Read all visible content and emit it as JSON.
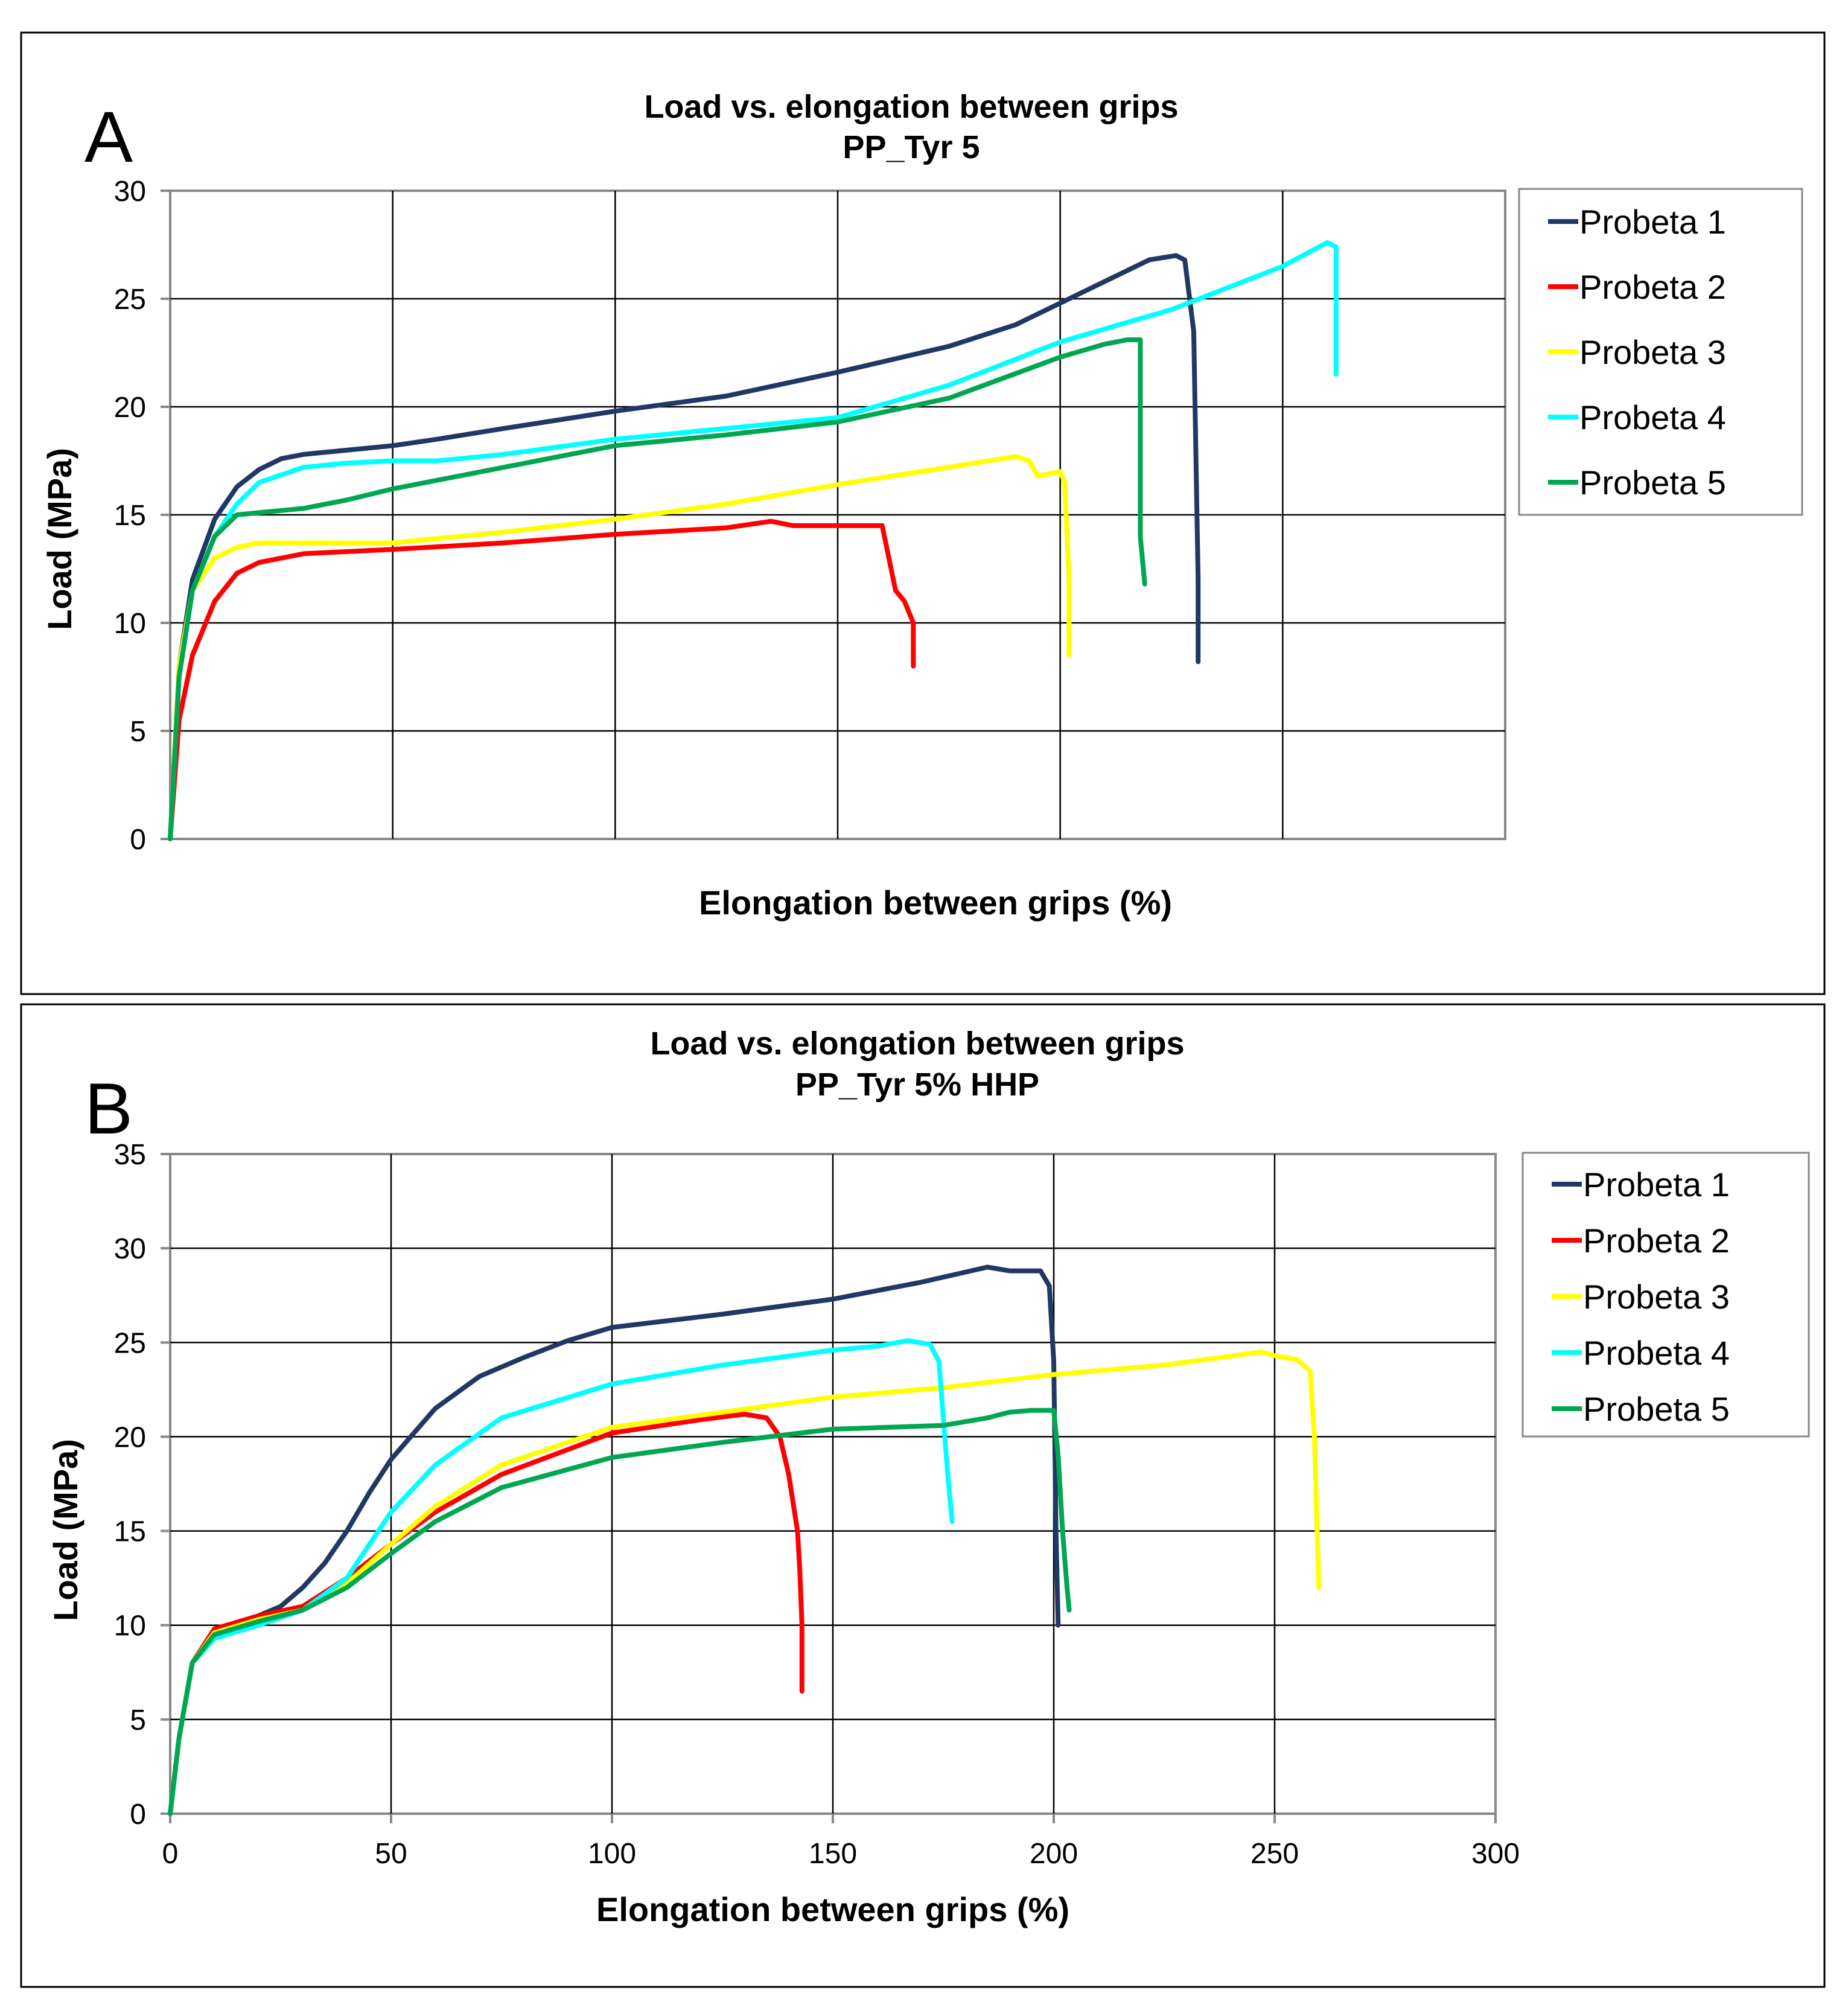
{
  "chart_data": [
    {
      "type": "line",
      "panel_label": "A",
      "title": "Load vs. elongation between grips",
      "subtitle": "PP_Tyr 5",
      "xlabel": "Elongation between grips (%)",
      "ylabel": "Load (MPa)",
      "xlim": [
        0,
        300
      ],
      "ylim": [
        0,
        30
      ],
      "yticks": [
        0,
        5,
        10,
        15,
        20,
        25,
        30
      ],
      "xticks": [],
      "grid": true,
      "legend_position": "right",
      "series": [
        {
          "name": "Probeta 1",
          "color": "#1f3864",
          "x": [
            0,
            2,
            5,
            10,
            15,
            20,
            25,
            30,
            40,
            50,
            60,
            75,
            100,
            125,
            150,
            175,
            190,
            200,
            210,
            220,
            226,
            228,
            230,
            231,
            231
          ],
          "y": [
            0,
            8,
            12,
            14.8,
            16.3,
            17.1,
            17.6,
            17.8,
            18,
            18.2,
            18.5,
            19,
            19.8,
            20.5,
            21.6,
            22.8,
            23.8,
            24.8,
            25.8,
            26.8,
            27,
            26.8,
            23.5,
            12,
            8.2
          ]
        },
        {
          "name": "Probeta 2",
          "color": "#ff0000",
          "x": [
            0,
            2,
            5,
            10,
            15,
            20,
            30,
            50,
            75,
            100,
            125,
            135,
            140,
            150,
            160,
            162,
            163,
            165,
            167,
            167
          ],
          "y": [
            0,
            5.5,
            8.5,
            11,
            12.3,
            12.8,
            13.2,
            13.4,
            13.7,
            14.1,
            14.4,
            14.7,
            14.5,
            14.5,
            14.5,
            12.5,
            11.5,
            11,
            10,
            8
          ]
        },
        {
          "name": "Probeta 3",
          "color": "#ffff00",
          "x": [
            0,
            2,
            5,
            10,
            15,
            20,
            30,
            50,
            75,
            100,
            125,
            150,
            175,
            190,
            193,
            195,
            200,
            201,
            202,
            202
          ],
          "y": [
            0,
            8,
            11.5,
            13,
            13.5,
            13.7,
            13.7,
            13.7,
            14.2,
            14.8,
            15.5,
            16.4,
            17.2,
            17.7,
            17.5,
            16.8,
            17,
            16.5,
            12,
            8.5
          ]
        },
        {
          "name": "Probeta 4",
          "color": "#00ffff",
          "x": [
            0,
            2,
            5,
            10,
            15,
            20,
            30,
            40,
            50,
            60,
            75,
            100,
            125,
            150,
            175,
            200,
            225,
            250,
            260,
            262,
            262
          ],
          "y": [
            0,
            7.5,
            11.5,
            14,
            15.5,
            16.5,
            17.2,
            17.4,
            17.5,
            17.5,
            17.8,
            18.5,
            19,
            19.5,
            21,
            23,
            24.5,
            26.5,
            27.6,
            27.4,
            21.5
          ]
        },
        {
          "name": "Probeta 5",
          "color": "#00a651",
          "x": [
            0,
            2,
            5,
            10,
            15,
            20,
            30,
            40,
            50,
            60,
            75,
            100,
            125,
            150,
            175,
            200,
            210,
            215,
            218,
            218,
            219
          ],
          "y": [
            0,
            7.5,
            11.5,
            14,
            15,
            15.1,
            15.3,
            15.7,
            16.2,
            16.6,
            17.2,
            18.2,
            18.7,
            19.3,
            20.4,
            22.3,
            22.9,
            23.1,
            23.1,
            14,
            11.8
          ]
        }
      ]
    },
    {
      "type": "line",
      "panel_label": "B",
      "title": "Load vs. elongation between grips",
      "subtitle": "PP_Tyr 5% HHP",
      "xlabel": "Elongation between grips (%)",
      "ylabel": "Load (MPa)",
      "xlim": [
        0,
        300
      ],
      "ylim": [
        0,
        35
      ],
      "yticks": [
        0,
        5,
        10,
        15,
        20,
        25,
        30,
        35
      ],
      "xticks": [
        0,
        50,
        100,
        150,
        200,
        250,
        300
      ],
      "grid": true,
      "legend_position": "right",
      "series": [
        {
          "name": "Probeta 1",
          "color": "#1f3864",
          "x": [
            0,
            2,
            5,
            10,
            20,
            25,
            30,
            35,
            40,
            45,
            50,
            60,
            70,
            80,
            90,
            100,
            125,
            150,
            170,
            185,
            190,
            197,
            199,
            200,
            200.5,
            201
          ],
          "y": [
            0,
            4,
            8,
            9.8,
            10.5,
            11,
            12,
            13.3,
            15,
            17,
            18.8,
            21.5,
            23.2,
            24.2,
            25.1,
            25.8,
            26.5,
            27.3,
            28.2,
            29,
            28.8,
            28.8,
            28,
            24,
            15,
            10
          ]
        },
        {
          "name": "Probeta 2",
          "color": "#ff0000",
          "x": [
            0,
            2,
            5,
            10,
            20,
            30,
            40,
            50,
            60,
            75,
            100,
            120,
            130,
            135,
            138,
            140,
            142,
            142.5,
            143,
            143
          ],
          "y": [
            0,
            4,
            8,
            9.8,
            10.5,
            11,
            12.5,
            14.3,
            16,
            18,
            20.2,
            20.9,
            21.2,
            21,
            20,
            18,
            15,
            13,
            10,
            6.5
          ]
        },
        {
          "name": "Probeta 3",
          "color": "#ffff00",
          "x": [
            0,
            2,
            5,
            10,
            20,
            30,
            40,
            50,
            60,
            75,
            100,
            125,
            150,
            175,
            200,
            225,
            247,
            250,
            255,
            258,
            259,
            260
          ],
          "y": [
            0,
            4,
            8,
            9.6,
            10.3,
            10.8,
            12.2,
            14.3,
            16.3,
            18.5,
            20.5,
            21.3,
            22.1,
            22.6,
            23.3,
            23.8,
            24.5,
            24.3,
            24.1,
            23.5,
            20,
            12
          ]
        },
        {
          "name": "Probeta 4",
          "color": "#00ffff",
          "x": [
            0,
            2,
            5,
            10,
            20,
            30,
            40,
            50,
            60,
            75,
            100,
            125,
            150,
            160,
            167,
            172,
            174,
            175,
            176,
            177
          ],
          "y": [
            0,
            4,
            8,
            9.3,
            10,
            10.8,
            12.5,
            16,
            18.5,
            21,
            22.8,
            23.8,
            24.6,
            24.8,
            25.1,
            24.9,
            24,
            21,
            18,
            15.5
          ]
        },
        {
          "name": "Probeta 5",
          "color": "#00a651",
          "x": [
            0,
            2,
            5,
            10,
            20,
            30,
            40,
            50,
            60,
            75,
            100,
            125,
            150,
            175,
            185,
            190,
            195,
            200,
            201,
            202,
            203,
            203.5
          ],
          "y": [
            0,
            4,
            8,
            9.5,
            10.2,
            10.8,
            12,
            13.8,
            15.5,
            17.3,
            18.9,
            19.7,
            20.4,
            20.6,
            21,
            21.3,
            21.4,
            21.4,
            19,
            15,
            12,
            10.8
          ]
        }
      ]
    }
  ]
}
